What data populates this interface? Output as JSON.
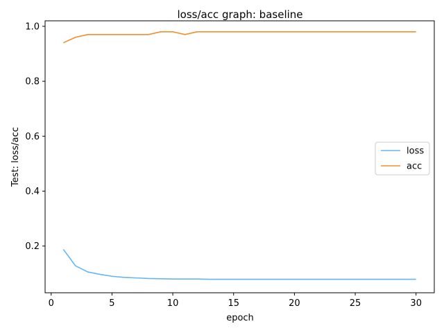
{
  "chart_data": {
    "type": "line",
    "title": "loss/acc graph: baseline",
    "xlabel": "epoch",
    "ylabel": "Test: loss/acc",
    "xlim": [
      -0.5,
      31.5
    ],
    "ylim": [
      0.03,
      1.02
    ],
    "xticks": [
      0,
      5,
      10,
      15,
      20,
      25,
      30
    ],
    "yticks": [
      0.2,
      0.4,
      0.6,
      0.8,
      1.0
    ],
    "xtick_labels": [
      "0",
      "5",
      "10",
      "15",
      "20",
      "25",
      "30"
    ],
    "ytick_labels": [
      "0.2",
      "0.4",
      "0.6",
      "0.8",
      "1.0"
    ],
    "grid": false,
    "legend_position": "center-right",
    "x": [
      1,
      2,
      3,
      4,
      5,
      6,
      7,
      8,
      9,
      10,
      11,
      12,
      13,
      14,
      15,
      16,
      17,
      18,
      19,
      20,
      21,
      22,
      23,
      24,
      25,
      26,
      27,
      28,
      29,
      30
    ],
    "series": [
      {
        "name": "loss",
        "color": "#64b5f6",
        "values": [
          0.188,
          0.128,
          0.106,
          0.097,
          0.09,
          0.086,
          0.084,
          0.082,
          0.081,
          0.08,
          0.08,
          0.08,
          0.079,
          0.079,
          0.079,
          0.079,
          0.079,
          0.079,
          0.079,
          0.079,
          0.079,
          0.079,
          0.079,
          0.079,
          0.079,
          0.079,
          0.079,
          0.079,
          0.079,
          0.079
        ]
      },
      {
        "name": "acc",
        "color": "#f28e2b",
        "values": [
          0.94,
          0.96,
          0.97,
          0.97,
          0.97,
          0.97,
          0.97,
          0.97,
          0.98,
          0.98,
          0.97,
          0.98,
          0.98,
          0.98,
          0.98,
          0.98,
          0.98,
          0.98,
          0.98,
          0.98,
          0.98,
          0.98,
          0.98,
          0.98,
          0.98,
          0.98,
          0.98,
          0.98,
          0.98,
          0.98
        ]
      }
    ]
  }
}
